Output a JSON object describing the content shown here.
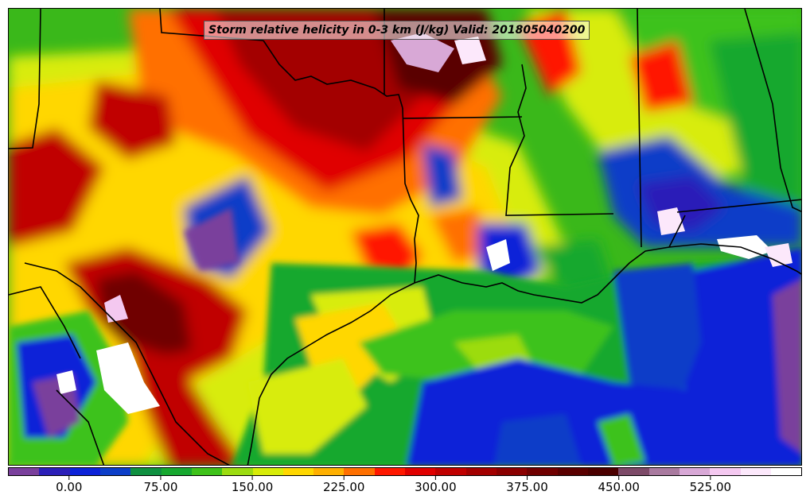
{
  "figure": {
    "title": "Storm relative helicity in 0-3 km (J/kg) Valid: 201805040200",
    "field": "Storm relative helicity",
    "layer": "0-3 km",
    "units": "J/kg",
    "valid_time": "201805040200"
  },
  "colorbar": {
    "colors": [
      "#7a3f9c",
      "#2b1fb8",
      "#0c22d8",
      "#0c3ec8",
      "#0f9040",
      "#16a82f",
      "#3ec21a",
      "#9cdc10",
      "#d8ec08",
      "#ffd700",
      "#ffb000",
      "#ff7000",
      "#ff1800",
      "#e00000",
      "#c00000",
      "#a30000",
      "#8a0000",
      "#700000",
      "#5a0000",
      "#4b0000",
      "#7d4a68",
      "#a97a9f",
      "#d8a8d6",
      "#f4c8f0",
      "#fce8fb",
      "#ffffff"
    ],
    "tick_labels": [
      "0.00",
      "75.00",
      "150.00",
      "225.00",
      "300.00",
      "375.00",
      "450.00",
      "525.00"
    ],
    "tick_values": [
      0,
      75,
      150,
      225,
      300,
      375,
      450,
      525
    ],
    "range": [
      -50,
      600
    ],
    "interval": 25
  },
  "map": {
    "region": "Southern Plains and Gulf Coast, United States",
    "boundaries": [
      "state lines",
      "coastline",
      "international border"
    ],
    "colors": {
      "background": "#3ab81a",
      "outline": "#000000"
    }
  }
}
